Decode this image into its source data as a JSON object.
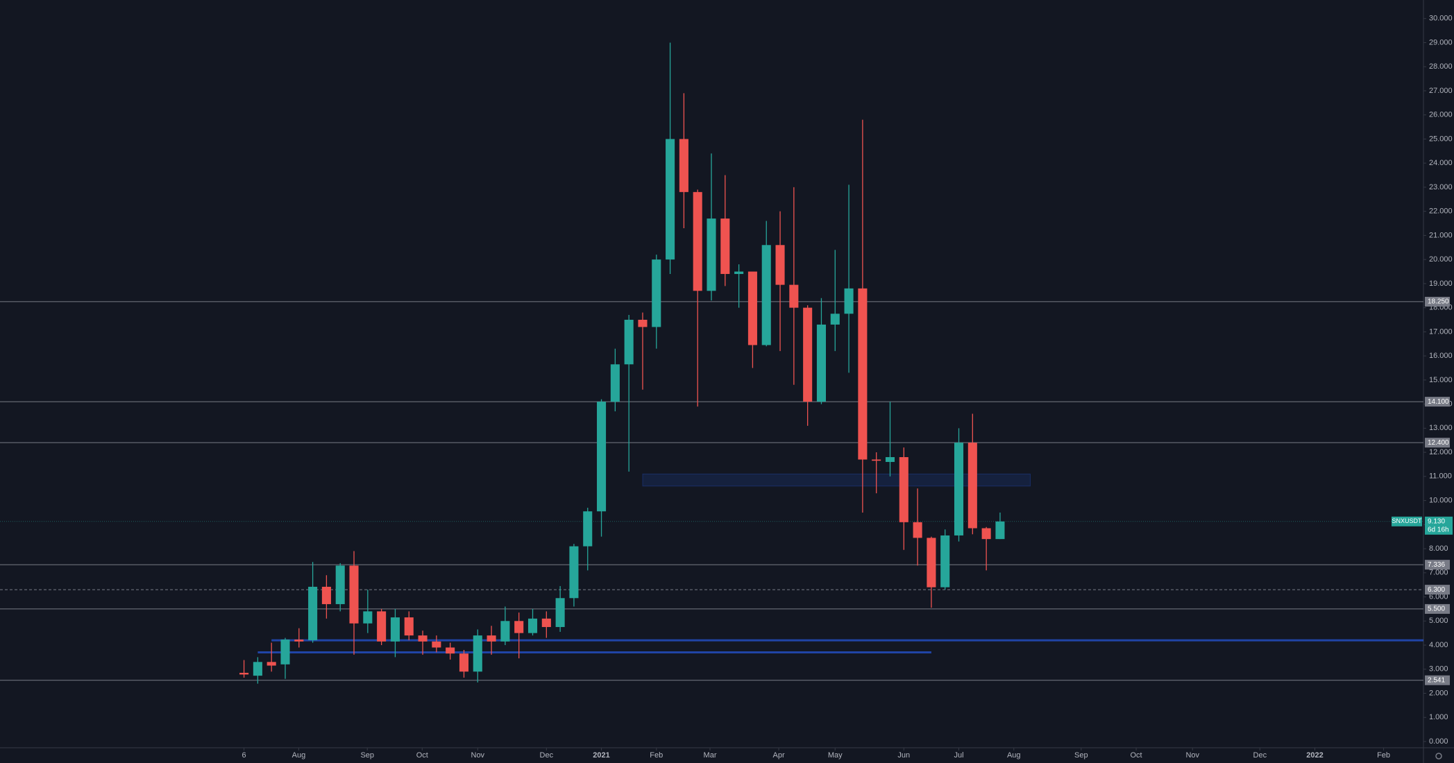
{
  "chart_data": {
    "type": "candlestick",
    "open": [
      2.85,
      2.73,
      3.3,
      3.2,
      4.23,
      4.2,
      6.42,
      5.7,
      7.3,
      4.9,
      5.4,
      4.15,
      5.15,
      4.4,
      4.15,
      3.9,
      3.65,
      2.9,
      4.4,
      4.15,
      5.0,
      4.5,
      5.1,
      4.75,
      5.95,
      8.1,
      9.55,
      14.1,
      15.65,
      17.5,
      17.2,
      20.0,
      25.0,
      22.8,
      18.7,
      21.7,
      19.4,
      19.5,
      16.45,
      20.6,
      18.95,
      18.0,
      14.1,
      17.3,
      17.75,
      18.8,
      11.7,
      11.6,
      11.8,
      9.1,
      8.45,
      6.4,
      8.55,
      12.4,
      8.85,
      8.4
    ],
    "high": [
      3.38,
      3.5,
      4.1,
      4.3,
      4.7,
      7.45,
      6.9,
      7.4,
      7.9,
      6.3,
      5.5,
      5.5,
      5.4,
      4.6,
      4.4,
      4.1,
      3.8,
      4.65,
      4.8,
      5.6,
      5.35,
      5.5,
      5.4,
      6.45,
      8.2,
      9.7,
      14.2,
      16.3,
      17.7,
      17.8,
      20.2,
      29.0,
      26.9,
      22.9,
      24.4,
      23.5,
      19.8,
      19.5,
      21.6,
      22.0,
      23.0,
      18.1,
      18.4,
      20.4,
      23.1,
      25.8,
      12.0,
      14.1,
      12.2,
      10.5,
      8.5,
      8.8,
      13.0,
      13.6,
      8.9,
      9.5
    ],
    "low": [
      2.65,
      2.4,
      2.9,
      2.6,
      3.9,
      4.1,
      5.1,
      5.4,
      3.6,
      4.5,
      4.0,
      3.5,
      4.2,
      3.6,
      3.7,
      3.4,
      2.65,
      2.45,
      3.6,
      4.0,
      3.45,
      4.4,
      4.3,
      4.55,
      5.6,
      7.1,
      8.5,
      13.7,
      11.2,
      14.6,
      16.3,
      19.4,
      21.3,
      13.9,
      18.3,
      18.9,
      18.0,
      15.5,
      16.4,
      16.2,
      14.8,
      13.1,
      14.0,
      16.2,
      15.3,
      9.5,
      10.3,
      11.0,
      7.95,
      7.3,
      5.55,
      6.3,
      8.3,
      8.6,
      7.1,
      8.4
    ],
    "close": [
      2.78,
      3.3,
      3.15,
      4.23,
      4.15,
      6.42,
      5.7,
      7.3,
      4.9,
      5.4,
      4.15,
      5.15,
      4.4,
      4.15,
      3.9,
      3.65,
      2.9,
      4.4,
      4.15,
      5.0,
      4.5,
      5.1,
      4.75,
      5.95,
      8.1,
      9.55,
      14.1,
      15.65,
      17.5,
      17.2,
      20.0,
      25.0,
      22.8,
      18.7,
      21.7,
      19.4,
      19.5,
      16.45,
      20.6,
      18.95,
      18.0,
      14.1,
      17.3,
      17.75,
      18.8,
      11.7,
      11.65,
      11.8,
      9.1,
      8.45,
      6.4,
      8.55,
      12.4,
      8.85,
      8.4,
      9.13
    ],
    "up_color": "#26a69a",
    "down_color": "#ef5350",
    "xlim": [
      -17.75,
      85.8
    ],
    "xticks": [
      {
        "value": 0,
        "label": "6"
      },
      {
        "value": 3.98,
        "label": "Aug"
      },
      {
        "value": 8.97,
        "label": "Sep"
      },
      {
        "value": 12.96,
        "label": "Oct"
      },
      {
        "value": 17.0,
        "label": "Nov"
      },
      {
        "value": 22.0,
        "label": "Dec"
      },
      {
        "value": 26.0,
        "label": "2021"
      },
      {
        "value": 30.0,
        "label": "Feb"
      },
      {
        "value": 33.9,
        "label": "Mar"
      },
      {
        "value": 38.9,
        "label": "Apr"
      },
      {
        "value": 43.0,
        "label": "May"
      },
      {
        "value": 48.0,
        "label": "Jun"
      },
      {
        "value": 52.0,
        "label": "Jul"
      },
      {
        "value": 56.0,
        "label": "Aug"
      },
      {
        "value": 60.9,
        "label": "Sep"
      },
      {
        "value": 64.9,
        "label": "Oct"
      },
      {
        "value": 69.0,
        "label": "Nov"
      },
      {
        "value": 73.9,
        "label": "Dec"
      },
      {
        "value": 77.9,
        "label": "2022"
      },
      {
        "value": 82.9,
        "label": "Feb"
      }
    ],
    "ylim": [
      0,
      30
    ],
    "yticks": [
      {
        "value": 0,
        "label": "0.000"
      },
      {
        "value": 1,
        "label": "1.000"
      },
      {
        "value": 2,
        "label": "2.000"
      },
      {
        "value": 3,
        "label": "3.000"
      },
      {
        "value": 4,
        "label": "4.000"
      },
      {
        "value": 5,
        "label": "5.000"
      },
      {
        "value": 6,
        "label": "6.000"
      },
      {
        "value": 7,
        "label": "7.000"
      },
      {
        "value": 8,
        "label": "8.000"
      },
      {
        "value": 9,
        "label": "9.000"
      },
      {
        "value": 10,
        "label": "10.000"
      },
      {
        "value": 11,
        "label": "11.000"
      },
      {
        "value": 12,
        "label": "12.000"
      },
      {
        "value": 13,
        "label": "13.000"
      },
      {
        "value": 14,
        "label": "14.000"
      },
      {
        "value": 15,
        "label": "15.000"
      },
      {
        "value": 16,
        "label": "16.000"
      },
      {
        "value": 17,
        "label": "17.000"
      },
      {
        "value": 18,
        "label": "18.000"
      },
      {
        "value": 19,
        "label": "19.000"
      },
      {
        "value": 20,
        "label": "20.000"
      },
      {
        "value": 21,
        "label": "21.000"
      },
      {
        "value": 22,
        "label": "22.000"
      },
      {
        "value": 23,
        "label": "23.000"
      },
      {
        "value": 24,
        "label": "24.000"
      },
      {
        "value": 25,
        "label": "25.000"
      },
      {
        "value": 26,
        "label": "26.000"
      },
      {
        "value": 27,
        "label": "27.000"
      },
      {
        "value": 28,
        "label": "28.000"
      },
      {
        "value": 29,
        "label": "29.000"
      },
      {
        "value": 30,
        "label": "30.000"
      }
    ],
    "levels": [
      {
        "value": 18.25,
        "label": "18.250"
      },
      {
        "value": 14.1,
        "label": "14.100"
      },
      {
        "value": 12.4,
        "label": "12.400"
      },
      {
        "value": 7.336,
        "label": "7.336"
      },
      {
        "value": 6.3,
        "label": "6.300",
        "dashed": true
      },
      {
        "value": 5.5,
        "label": "5.500"
      },
      {
        "value": 2.541,
        "label": "2.541"
      }
    ],
    "trend_lines": [
      {
        "value": 4.2,
        "from": 2
      },
      {
        "value": 3.7,
        "from": 1,
        "to": 50
      }
    ],
    "zone": {
      "low": 10.6,
      "high": 11.1,
      "from": 29,
      "to": 57.2
    },
    "last_price": {
      "name": "SNXUSDT",
      "value": 9.13,
      "label": "9.130",
      "countdown": "6d 16h"
    }
  }
}
